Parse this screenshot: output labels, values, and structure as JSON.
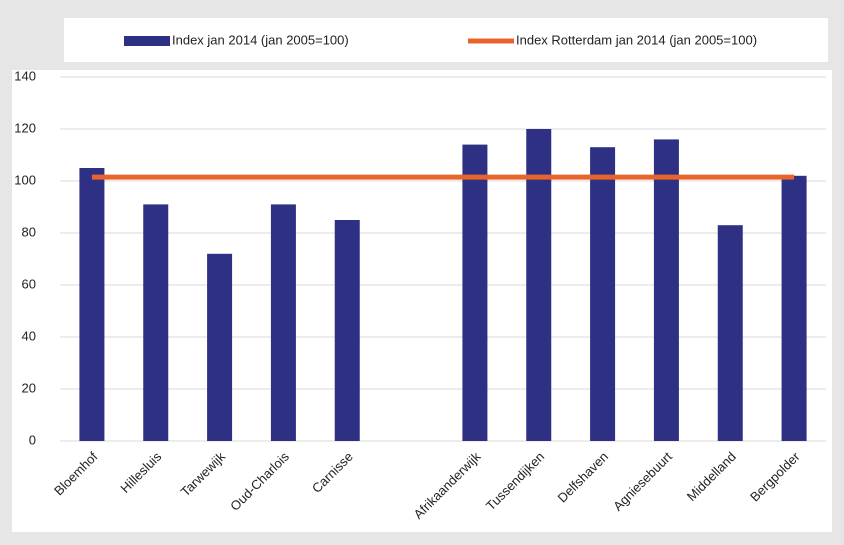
{
  "chart_data": {
    "type": "bar",
    "categories": [
      "Bloemhof",
      "Hillesluis",
      "Tarwewijk",
      "Oud-Charlois",
      "Carnisse",
      null,
      "Afrikaanderwijk",
      "Tussendijken",
      "Delfshaven",
      "Agniesebuurt",
      "Middelland",
      "Bergpolder"
    ],
    "series": [
      {
        "name": "Index jan 2014 (jan 2005=100)",
        "type": "bar",
        "color": "#2e3183",
        "values": [
          105,
          91,
          72,
          91,
          85,
          null,
          114,
          120,
          113,
          116,
          83,
          102
        ]
      },
      {
        "name": "Index Rotterdam jan 2014 (jan 2005=100)",
        "type": "line",
        "color": "#e8642c",
        "values": [
          101.5,
          101.5,
          101.5,
          101.5,
          101.5,
          101.5,
          101.5,
          101.5,
          101.5,
          101.5,
          101.5,
          101.5
        ]
      }
    ],
    "ylim": [
      0,
      140
    ],
    "yticks": [
      0,
      20,
      40,
      60,
      80,
      100,
      120,
      140
    ],
    "grid": true,
    "legend": "top"
  }
}
